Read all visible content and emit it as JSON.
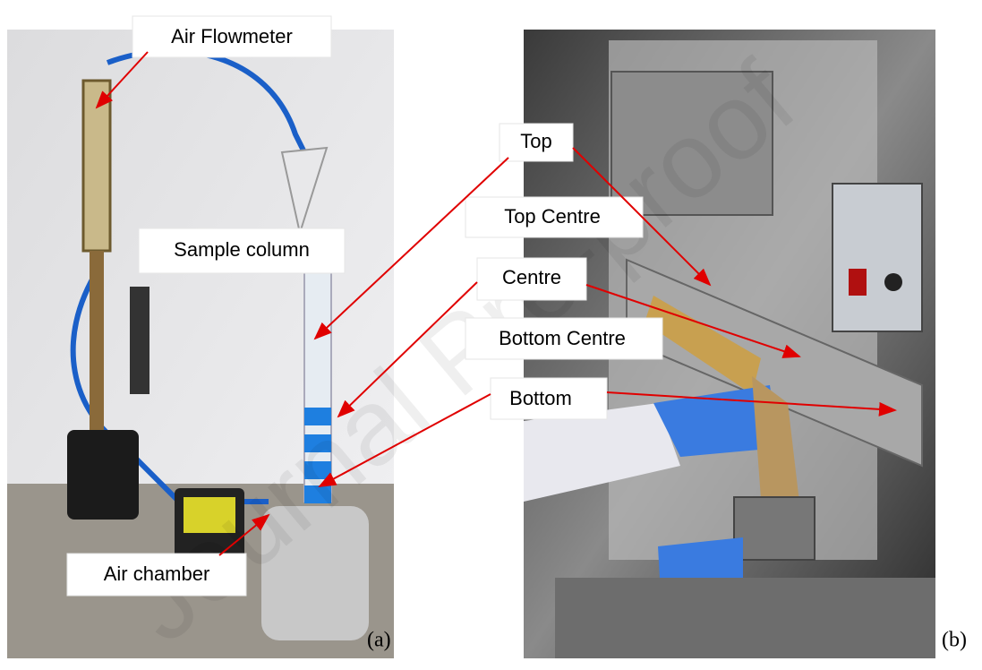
{
  "watermark": "Journal Pre-proof",
  "panel_a": {
    "labels": [
      "Air Flowmeter",
      "Sample column",
      "Air chamber"
    ],
    "caption": "(a)"
  },
  "panel_b": {
    "labels": [
      "Top",
      "Top Centre",
      "Centre",
      "Bottom Centre",
      "Bottom"
    ],
    "caption": "(b)"
  }
}
